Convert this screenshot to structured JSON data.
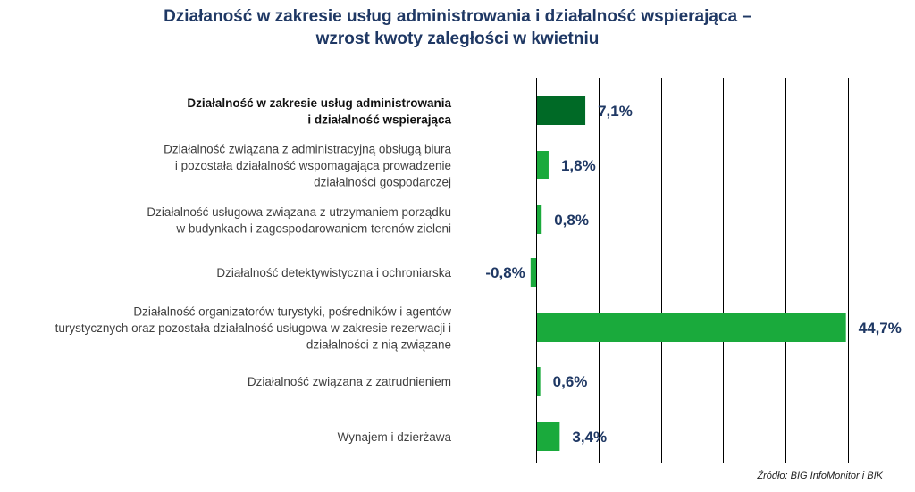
{
  "colors": {
    "title": "#1f3864",
    "value_label": "#1f3864",
    "bar_total": "#006a26",
    "bar": "#1aaa3c",
    "grid": "#000000",
    "category_text": "#404040"
  },
  "chart_data": {
    "type": "bar",
    "orientation": "horizontal",
    "title_lines": [
      "Działaność w zakresie usług administrowania i działalność wspierająca –",
      "wzrost kwoty zaległości w kwietniu"
    ],
    "categories": [
      {
        "lines": [
          "Działalność w zakresie usług administrowania",
          "i działalność wspierająca"
        ],
        "bold": true
      },
      {
        "lines": [
          "Działalność związana z administracyjną obsługą biura",
          "i pozostała działalność wspomagająca prowadzenie",
          "działalności gospodarczej"
        ],
        "bold": false
      },
      {
        "lines": [
          "Działalność usługowa związana z utrzymaniem porządku",
          "w budynkach i zagospodarowaniem terenów zieleni"
        ],
        "bold": false
      },
      {
        "lines": [
          "Działalność detektywistyczna i ochroniarska"
        ],
        "bold": false
      },
      {
        "lines": [
          "Działalność organizatorów turystyki, pośredników i agentów",
          "turystycznych oraz pozostała działalność usługowa w zakresie rezerwacji i",
          "działalności z nią związane"
        ],
        "bold": false
      },
      {
        "lines": [
          "Działalność związana z zatrudnieniem"
        ],
        "bold": false
      },
      {
        "lines": [
          "Wynajem i dzierżawa"
        ],
        "bold": false
      }
    ],
    "values": [
      7.1,
      1.8,
      0.8,
      -0.8,
      44.7,
      0.6,
      3.4
    ],
    "value_labels": [
      "7,1%",
      "1,8%",
      "0,8%",
      "-0,8%",
      "44,7%",
      "0,6%",
      "3,4%"
    ],
    "xlim": [
      0,
      45
    ],
    "grid_step": 9,
    "grid": true
  },
  "source": "Źródło: BIG InfoMonitor i BIK"
}
